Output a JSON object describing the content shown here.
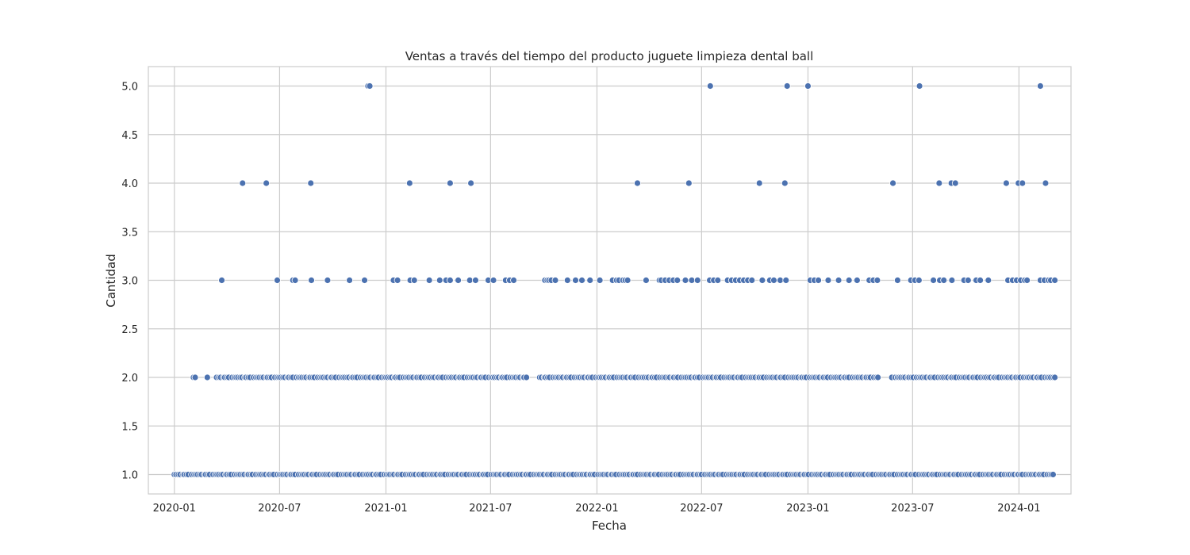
{
  "chart_data": {
    "type": "scatter",
    "title": "Ventas a través del tiempo del producto juguete limpieza dental ball",
    "xlabel": "Fecha",
    "ylabel": "Cantidad",
    "xlim": [
      "2019-11-17",
      "2024-03-31"
    ],
    "ylim": [
      0.8,
      5.2
    ],
    "x_ticks": [
      "2020-01",
      "2020-07",
      "2021-01",
      "2021-07",
      "2022-01",
      "2022-07",
      "2023-01",
      "2023-07",
      "2024-01"
    ],
    "y_ticks": [
      "1.0",
      "1.5",
      "2.0",
      "2.5",
      "3.0",
      "3.5",
      "4.0",
      "4.5",
      "5.0"
    ],
    "grid": true,
    "point_color": "#4c72b0",
    "series": [
      {
        "level": 5,
        "dates": [
          "2020-12-01",
          "2020-12-04",
          "2022-07-16",
          "2022-11-26",
          "2023-01-01",
          "2023-07-13",
          "2024-02-07"
        ]
      },
      {
        "level": 4,
        "dates": [
          "2020-04-28",
          "2020-06-08",
          "2020-08-24",
          "2021-02-11",
          "2021-04-22",
          "2021-05-28",
          "2022-03-12",
          "2022-06-09",
          "2022-10-09",
          "2022-11-22",
          "2023-05-28",
          "2023-08-16",
          "2023-09-06",
          "2023-09-13",
          "2023-12-10",
          "2023-12-31",
          "2024-01-07",
          "2024-02-16"
        ]
      },
      {
        "level": 3,
        "dates": [
          "2020-03-23",
          "2020-06-27",
          "2020-07-24",
          "2020-07-28",
          "2020-08-25",
          "2020-09-22",
          "2020-10-30",
          "2020-11-25",
          "2021-01-14",
          "2021-01-21",
          "2021-02-12",
          "2021-02-19",
          "2021-03-17",
          "2021-04-04",
          "2021-04-15",
          "2021-04-22",
          "2021-05-06",
          "2021-05-26",
          "2021-06-05",
          "2021-06-27",
          "2021-07-06",
          "2021-07-27",
          "2021-08-03",
          "2021-08-10",
          "2021-10-03",
          "2021-10-07",
          "2021-10-10",
          "2021-10-14",
          "2021-10-21",
          "2021-11-11",
          "2021-11-25",
          "2021-12-06",
          "2021-12-20",
          "2022-01-06",
          "2022-01-28",
          "2022-02-04",
          "2022-02-08",
          "2022-02-15",
          "2022-02-19",
          "2022-02-23",
          "2022-03-27",
          "2022-04-19",
          "2022-04-22",
          "2022-04-29",
          "2022-05-06",
          "2022-05-13",
          "2022-05-20",
          "2022-06-03",
          "2022-06-14",
          "2022-06-24",
          "2022-07-15",
          "2022-07-22",
          "2022-07-29",
          "2022-08-15",
          "2022-08-22",
          "2022-08-29",
          "2022-09-05",
          "2022-09-12",
          "2022-09-19",
          "2022-09-26",
          "2022-10-14",
          "2022-10-27",
          "2022-11-03",
          "2022-11-14",
          "2022-11-24",
          "2023-01-05",
          "2023-01-12",
          "2023-01-19",
          "2023-02-05",
          "2023-02-23",
          "2023-03-13",
          "2023-03-27",
          "2023-04-17",
          "2023-04-24",
          "2023-05-01",
          "2023-06-05",
          "2023-06-28",
          "2023-07-05",
          "2023-07-12",
          "2023-08-06",
          "2023-08-17",
          "2023-08-24",
          "2023-09-07",
          "2023-09-28",
          "2023-10-05",
          "2023-10-19",
          "2023-10-26",
          "2023-11-09",
          "2023-12-13",
          "2023-12-21",
          "2023-12-28",
          "2024-01-04",
          "2024-01-11",
          "2024-01-15",
          "2024-02-07",
          "2024-02-14",
          "2024-02-21",
          "2024-02-25",
          "2024-03-03"
        ]
      }
    ],
    "dense_levels": [
      {
        "level": 2,
        "start": "2020-02-03",
        "end": "2024-03-03",
        "gaps": [
          [
            "2020-02-10",
            "2020-02-25"
          ],
          [
            "2020-02-28",
            "2020-03-11"
          ],
          [
            "2021-09-02",
            "2021-09-22"
          ],
          [
            "2023-05-05",
            "2023-05-24"
          ]
        ]
      },
      {
        "level": 1,
        "start": "2020-01-01",
        "end": "2024-03-03",
        "gaps": []
      }
    ]
  }
}
